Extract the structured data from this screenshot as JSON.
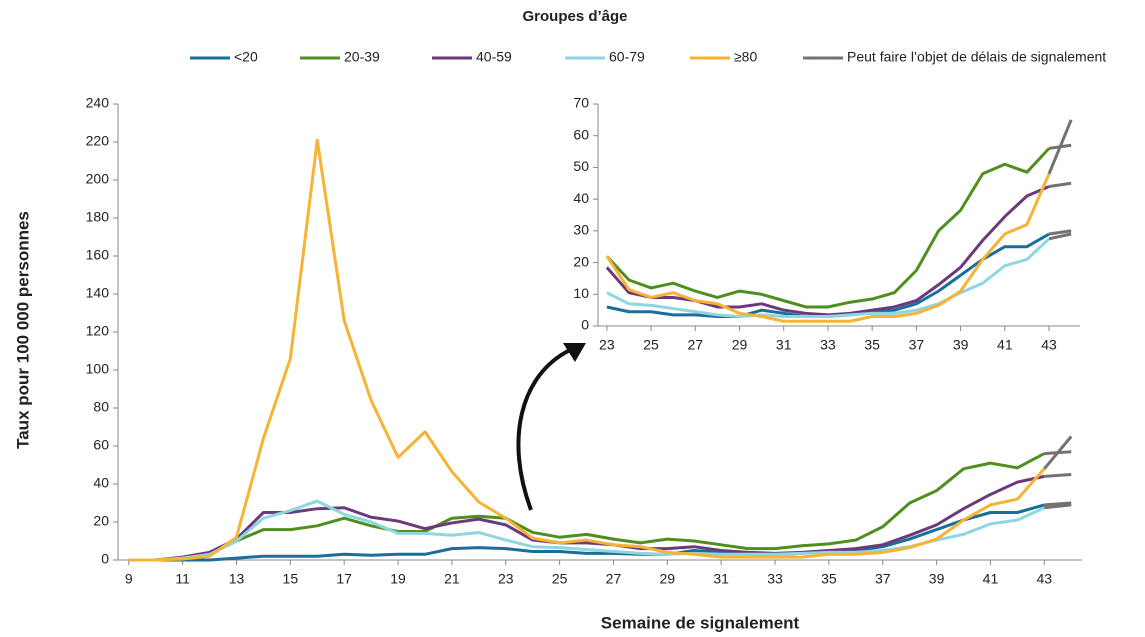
{
  "chart_data": [
    {
      "type": "line",
      "title": "Groupes d’âge",
      "x_label": "Semaine de signalement",
      "y_label": "Taux pour 100 000 personnes",
      "x": [
        9,
        10,
        11,
        12,
        13,
        14,
        15,
        16,
        17,
        18,
        19,
        20,
        21,
        22,
        23,
        24,
        25,
        26,
        27,
        28,
        29,
        30,
        31,
        32,
        33,
        34,
        35,
        36,
        37,
        38,
        39,
        40,
        41,
        42,
        43,
        44
      ],
      "xlim": [
        8.6,
        44.4
      ],
      "xticks": [
        9,
        11,
        13,
        15,
        17,
        19,
        21,
        23,
        25,
        27,
        29,
        31,
        33,
        35,
        37,
        39,
        41,
        43
      ],
      "ylim": [
        0,
        240
      ],
      "yticks": [
        0,
        20,
        40,
        60,
        80,
        100,
        120,
        140,
        160,
        180,
        200,
        220,
        240
      ],
      "series": [
        {
          "name": "<20",
          "color": "#1a6f9a",
          "values": [
            0,
            0,
            0,
            0,
            1,
            2,
            2,
            2,
            3,
            2.5,
            3,
            3,
            6,
            6.5,
            6,
            4.5,
            4.5,
            3.5,
            3.5,
            3,
            3,
            5,
            4,
            3,
            3,
            3.5,
            4.5,
            5,
            7,
            11,
            16,
            21,
            25,
            25,
            29,
            30
          ]
        },
        {
          "name": "20-39",
          "color": "#4e8f1f",
          "values": [
            0,
            0,
            1,
            3,
            10,
            16,
            16,
            18,
            22,
            18,
            15,
            15,
            22,
            23,
            22,
            14.5,
            12,
            13.5,
            11,
            9,
            11,
            10,
            8,
            6,
            6,
            7.5,
            8.5,
            10.5,
            17.5,
            30,
            36.5,
            48,
            51,
            48.5,
            56,
            57
          ]
        },
        {
          "name": "40-59",
          "color": "#6b3a7d",
          "values": [
            0,
            0,
            1.5,
            4,
            11,
            25,
            25,
            27,
            27.5,
            22.5,
            20.5,
            16.5,
            19.5,
            21.5,
            18.5,
            10.5,
            9,
            9,
            8,
            6,
            6,
            7,
            5,
            4,
            3.5,
            4,
            5,
            6,
            8,
            13,
            18.5,
            27,
            34.5,
            41,
            44,
            45
          ]
        },
        {
          "name": "60-79",
          "color": "#8ed6e0",
          "values": [
            0,
            0,
            1,
            3,
            10,
            22,
            26,
            31,
            24,
            20,
            14,
            14,
            13,
            14.5,
            10.5,
            7,
            6.5,
            5.5,
            4.5,
            3.5,
            3,
            3.5,
            3,
            3,
            3,
            3.5,
            4,
            4,
            5,
            7,
            10.5,
            13.5,
            19,
            21,
            27.5,
            29
          ]
        },
        {
          "name": "≥80",
          "color": "#f7b334",
          "values": [
            0,
            0,
            0.5,
            2,
            12,
            64,
            106,
            221,
            126,
            84,
            54,
            67.5,
            46.5,
            30.5,
            22,
            11.5,
            9,
            10.5,
            8,
            7,
            4,
            3,
            1.5,
            1.5,
            1.5,
            1.5,
            3,
            3,
            4,
            6.5,
            11,
            21,
            29,
            32,
            48,
            65
          ]
        }
      ],
      "delay": {
        "name": "Peut faire l’objet de délais de signalement",
        "color": "#767171",
        "from": 43
      }
    },
    {
      "type": "line",
      "x": [
        23,
        24,
        25,
        26,
        27,
        28,
        29,
        30,
        31,
        32,
        33,
        34,
        35,
        36,
        37,
        38,
        39,
        40,
        41,
        42,
        43,
        44
      ],
      "xlim": [
        22.6,
        44.4
      ],
      "xticks": [
        23,
        25,
        27,
        29,
        31,
        33,
        35,
        37,
        39,
        41,
        43
      ],
      "ylim": [
        0,
        70
      ],
      "yticks": [
        0,
        10,
        20,
        30,
        40,
        50,
        60,
        70
      ],
      "series": [
        {
          "color": "#1a6f9a",
          "values": [
            6,
            4.5,
            4.5,
            3.5,
            3.5,
            3,
            3,
            5,
            4,
            3,
            3,
            3.5,
            4.5,
            5,
            7,
            11,
            16,
            21,
            25,
            25,
            29,
            30
          ]
        },
        {
          "color": "#4e8f1f",
          "values": [
            22,
            14.5,
            12,
            13.5,
            11,
            9,
            11,
            10,
            8,
            6,
            6,
            7.5,
            8.5,
            10.5,
            17.5,
            30,
            36.5,
            48,
            51,
            48.5,
            56,
            57
          ]
        },
        {
          "color": "#6b3a7d",
          "values": [
            18.5,
            10.5,
            9,
            9,
            8,
            6,
            6,
            7,
            5,
            4,
            3.5,
            4,
            5,
            6,
            8,
            13,
            18.5,
            27,
            34.5,
            41,
            44,
            45
          ]
        },
        {
          "color": "#8ed6e0",
          "values": [
            10.5,
            7,
            6.5,
            5.5,
            4.5,
            3.5,
            3,
            3.5,
            3,
            3,
            3,
            3.5,
            4,
            4,
            5,
            7,
            10.5,
            13.5,
            19,
            21,
            27.5,
            29
          ]
        },
        {
          "color": "#f7b334",
          "values": [
            22,
            11.5,
            9,
            10.5,
            8,
            7,
            4,
            3,
            1.5,
            1.5,
            1.5,
            1.5,
            3,
            3,
            4,
            6.5,
            11,
            21,
            29,
            32,
            48,
            65
          ]
        }
      ],
      "delay": {
        "color": "#767171",
        "from": 43
      }
    }
  ]
}
